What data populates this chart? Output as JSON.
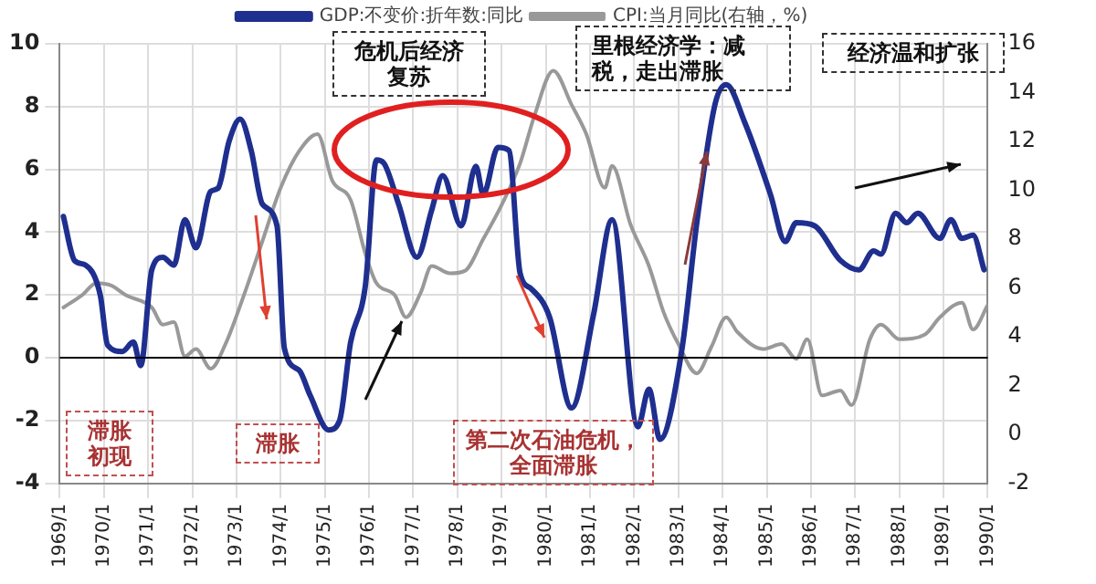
{
  "chart_data": {
    "type": "line",
    "x": [
      "1969-02",
      "1969-05",
      "1969-08",
      "1969-12",
      "1970-02",
      "1970-06",
      "1970-09",
      "1970-11",
      "1971-02",
      "1971-05",
      "1971-08",
      "1971-11",
      "1972-02",
      "1972-06",
      "1972-08",
      "1972-11",
      "1973-02",
      "1973-05",
      "1973-08",
      "1973-12",
      "1974-02",
      "1974-06",
      "1974-09",
      "1975-02",
      "1975-05",
      "1975-08",
      "1975-12",
      "1976-03",
      "1976-05",
      "1976-09",
      "1977-02",
      "1977-06",
      "1977-09",
      "1978-02",
      "1978-06",
      "1978-08",
      "1978-12",
      "1979-03",
      "1979-06",
      "1979-09",
      "1980-02",
      "1980-08",
      "1981-02",
      "1981-07",
      "1982-02",
      "1982-05",
      "1982-08",
      "1983-02",
      "1983-06",
      "1983-11",
      "1984-02",
      "1984-07",
      "1985-02",
      "1985-06",
      "1985-09",
      "1986-02",
      "1986-09",
      "1987-02",
      "1987-06",
      "1987-08",
      "1987-12",
      "1988-03",
      "1988-06",
      "1988-12",
      "1989-03",
      "1989-06",
      "1989-09",
      "1989-12"
    ],
    "series": [
      {
        "name": "GDP:不变价:折年数:同比",
        "color": "#1f2f8f",
        "values": [
          4.5,
          3.1,
          2.95,
          2.0,
          0.4,
          0.2,
          0.5,
          -0.25,
          2.8,
          3.2,
          2.95,
          4.4,
          3.5,
          5.3,
          5.4,
          6.9,
          7.6,
          6.6,
          4.9,
          4.2,
          0.3,
          -0.4,
          -1.2,
          -2.3,
          -2.0,
          0.5,
          2.3,
          6.3,
          6.2,
          4.9,
          3.2,
          4.7,
          5.8,
          4.2,
          6.1,
          5.2,
          6.7,
          6.6,
          2.7,
          2.2,
          1.3,
          -1.6,
          1.4,
          4.4,
          -2.2,
          -1.0,
          -2.6,
          0.3,
          4.3,
          8.1,
          8.7,
          7.5,
          5.2,
          3.7,
          4.3,
          4.2,
          3.1,
          2.8,
          3.4,
          3.3,
          4.6,
          4.3,
          4.6,
          3.8,
          4.4,
          3.8,
          3.9,
          2.8
        ]
      },
      {
        "name": "CPI:当月同比(右轴，%)",
        "color": "#999999",
        "axis": "y2",
        "x": [
          "1969-02",
          "1969-07",
          "1969-11",
          "1970-03",
          "1970-07",
          "1971-02",
          "1971-05",
          "1971-08",
          "1971-11",
          "1972-02",
          "1972-06",
          "1972-10",
          "1973-03",
          "1973-08",
          "1974-01",
          "1974-06",
          "1974-11",
          "1975-03",
          "1975-08",
          "1975-12",
          "1976-03",
          "1976-08",
          "1976-11",
          "1977-03",
          "1977-06",
          "1977-11",
          "1978-03",
          "1978-08",
          "1979-01",
          "1979-06",
          "1979-10",
          "1980-03",
          "1980-08",
          "1980-12",
          "1981-05",
          "1981-07",
          "1981-12",
          "1982-05",
          "1982-09",
          "1983-01",
          "1983-06",
          "1983-10",
          "1984-02",
          "1984-05",
          "1984-12",
          "1985-05",
          "1985-09",
          "1985-12",
          "1986-04",
          "1986-09",
          "1986-12",
          "1987-05",
          "1987-08",
          "1988-01",
          "1988-08",
          "1988-12",
          "1989-06",
          "1989-09",
          "1990-01"
        ],
        "values": [
          5.2,
          5.7,
          6.2,
          6.1,
          5.7,
          5.2,
          4.5,
          4.6,
          3.2,
          3.5,
          2.7,
          3.7,
          5.7,
          7.9,
          10.1,
          11.6,
          12.3,
          10.4,
          9.6,
          7.4,
          6.2,
          5.7,
          4.8,
          5.8,
          6.9,
          6.6,
          6.7,
          8.0,
          9.4,
          11.1,
          13.1,
          14.9,
          13.5,
          12.3,
          10.1,
          11.0,
          8.6,
          6.9,
          5.0,
          3.7,
          2.5,
          3.6,
          4.8,
          4.2,
          3.5,
          3.7,
          3.1,
          3.9,
          1.6,
          1.8,
          1.2,
          3.9,
          4.5,
          3.9,
          4.1,
          4.8,
          5.4,
          4.3,
          5.3
        ]
      }
    ],
    "xlim": [
      "1969-01",
      "1990-01"
    ],
    "xticks": [
      {
        "value": "1969-01",
        "label": "1969/1"
      },
      {
        "value": "1970-01",
        "label": "1970/1"
      },
      {
        "value": "1971-01",
        "label": "1971/1"
      },
      {
        "value": "1972-01",
        "label": "1972/1"
      },
      {
        "value": "1973-01",
        "label": "1973/1"
      },
      {
        "value": "1974-01",
        "label": "1974/1"
      },
      {
        "value": "1975-01",
        "label": "1975/1"
      },
      {
        "value": "1976-01",
        "label": "1976/1"
      },
      {
        "value": "1977-01",
        "label": "1977/1"
      },
      {
        "value": "1978-01",
        "label": "1978/1"
      },
      {
        "value": "1979-01",
        "label": "1979/1"
      },
      {
        "value": "1980-01",
        "label": "1980/1"
      },
      {
        "value": "1981-01",
        "label": "1981/1"
      },
      {
        "value": "1982-01",
        "label": "1982/1"
      },
      {
        "value": "1983-01",
        "label": "1983/1"
      },
      {
        "value": "1984-01",
        "label": "1984/1"
      },
      {
        "value": "1985-01",
        "label": "1985/1"
      },
      {
        "value": "1986-01",
        "label": "1986/1"
      },
      {
        "value": "1987-01",
        "label": "1987/1"
      },
      {
        "value": "1988-01",
        "label": "1988/1"
      },
      {
        "value": "1989-01",
        "label": "1989/1"
      },
      {
        "value": "1990-01",
        "label": "1990/1"
      }
    ],
    "ylim": [
      -4,
      10
    ],
    "yticks": [
      -4,
      -2,
      0,
      2,
      4,
      6,
      8,
      10
    ],
    "y2lim": [
      -2,
      16
    ],
    "y2ticks": [
      -2,
      0,
      2,
      4,
      6,
      8,
      10,
      12,
      14,
      16
    ],
    "ref_lines": [
      {
        "axis": "y",
        "value": 0,
        "color": "#000000"
      }
    ],
    "annotations": [
      "危机后经济复苏",
      "里根经济学：减税，走出滞胀",
      "经济温和扩张",
      "滞胀初现",
      "滞胀",
      "第二次石油危机，全面滞胀"
    ],
    "grid": true,
    "legend": "top",
    "marker": "none",
    "line_style": "solid"
  }
}
